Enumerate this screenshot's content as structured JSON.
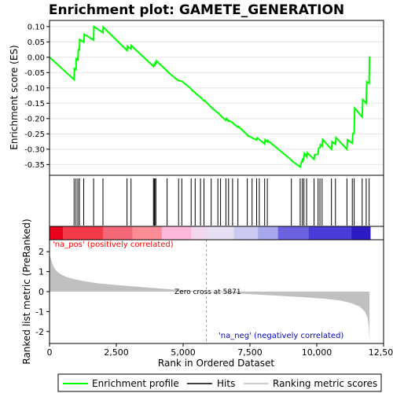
{
  "chart_data": {
    "type": "line",
    "title": "Enrichment plot: GAMETE_GENERATION",
    "colors": {
      "profile": "#00ff00",
      "hits": "#000000",
      "metric_fill": "#c0c0c0",
      "zero_cross_line": "#a0a0a0",
      "pos_label": "#ff0000",
      "neg_label": "#0000cc"
    },
    "top_panel": {
      "ylabel": "Enrichment score (ES)",
      "ylim": [
        -0.385,
        0.12
      ],
      "yticks": [
        0.1,
        0.05,
        0.0,
        -0.05,
        -0.1,
        -0.15,
        -0.2,
        -0.25,
        -0.3,
        -0.35
      ],
      "ytick_labels": [
        "0.10",
        "0.05",
        "0.00",
        "-0.05",
        "-0.10",
        "-0.15",
        "-0.20",
        "-0.25",
        "-0.30",
        "-0.35"
      ],
      "series": [
        {
          "name": "Enrichment profile",
          "x": [
            0,
            920,
            930,
            990,
            1000,
            1060,
            1080,
            1120,
            1130,
            1280,
            1300,
            1650,
            1660,
            2000,
            2010,
            2900,
            2910,
            3050,
            3060,
            3890,
            3900,
            3940,
            3950,
            3980,
            4000,
            4400,
            4450,
            4830,
            4850,
            4950,
            5000,
            5300,
            5330,
            5450,
            5470,
            5650,
            5680,
            5780,
            5800,
            6050,
            6080,
            6300,
            6320,
            6400,
            6420,
            6600,
            6620,
            6700,
            6720,
            6850,
            6870,
            7050,
            7070,
            7400,
            7420,
            7580,
            7600,
            7750,
            7770,
            7850,
            7870,
            8050,
            8070,
            8150,
            8170,
            9050,
            9070,
            9380,
            9400,
            9460,
            9480,
            9520,
            9540,
            9620,
            9640,
            9900,
            9920,
            10050,
            10070,
            10120,
            10140,
            10200,
            10220,
            10550,
            10570,
            10700,
            10720,
            11130,
            11150,
            11330,
            11350,
            11400,
            11420,
            11700,
            11720,
            11850,
            11870,
            11960,
            11975
          ],
          "y": [
            0.0,
            -0.073,
            -0.037,
            -0.04,
            -0.005,
            -0.009,
            0.025,
            0.024,
            0.058,
            0.049,
            0.075,
            0.056,
            0.1,
            0.08,
            0.098,
            0.022,
            0.036,
            0.027,
            0.038,
            -0.03,
            -0.024,
            -0.027,
            -0.018,
            -0.02,
            -0.012,
            -0.045,
            -0.05,
            -0.077,
            -0.076,
            -0.078,
            -0.082,
            -0.103,
            -0.108,
            -0.115,
            -0.118,
            -0.131,
            -0.133,
            -0.142,
            -0.141,
            -0.163,
            -0.166,
            -0.182,
            -0.182,
            -0.19,
            -0.192,
            -0.206,
            -0.2,
            -0.209,
            -0.207,
            -0.213,
            -0.216,
            -0.228,
            -0.226,
            -0.253,
            -0.256,
            -0.262,
            -0.264,
            -0.27,
            -0.263,
            -0.268,
            -0.27,
            -0.283,
            -0.269,
            -0.276,
            -0.272,
            -0.335,
            -0.338,
            -0.358,
            -0.35,
            -0.335,
            -0.339,
            -0.325,
            -0.313,
            -0.324,
            -0.312,
            -0.333,
            -0.318,
            -0.316,
            -0.296,
            -0.295,
            -0.285,
            -0.29,
            -0.268,
            -0.3,
            -0.275,
            -0.284,
            -0.262,
            -0.3,
            -0.269,
            -0.28,
            -0.249,
            -0.247,
            -0.166,
            -0.195,
            -0.138,
            -0.15,
            -0.08,
            -0.085,
            0.003
          ]
        }
      ]
    },
    "hits_panel": {
      "hit_ranks": [
        920,
        990,
        1060,
        1120,
        1280,
        1650,
        2000,
        2900,
        3050,
        3890,
        3920,
        3940,
        3980,
        4400,
        4830,
        4950,
        5300,
        5450,
        5650,
        5780,
        6050,
        6300,
        6400,
        6600,
        6700,
        6850,
        7050,
        7400,
        7580,
        7750,
        7850,
        8050,
        8150,
        9050,
        9380,
        9460,
        9520,
        9620,
        9900,
        10050,
        10120,
        10200,
        10550,
        10700,
        11130,
        11330,
        11400,
        11700,
        11850,
        11960
      ]
    },
    "color_bar": {
      "stops": [
        {
          "rank": 0,
          "color": "#e8001c"
        },
        {
          "rank": 500,
          "color": "#f23a4a"
        },
        {
          "rank": 2000,
          "color": "#f26878"
        },
        {
          "rank": 3100,
          "color": "#fa8c96"
        },
        {
          "rank": 4200,
          "color": "#fcb8d8"
        },
        {
          "rank": 5300,
          "color": "#f4d6ef"
        },
        {
          "rank": 5871,
          "color": "#e6e0f4"
        },
        {
          "rank": 6900,
          "color": "#cccaf0"
        },
        {
          "rank": 7800,
          "color": "#a8a6ec"
        },
        {
          "rank": 8550,
          "color": "#6c62e0"
        },
        {
          "rank": 9700,
          "color": "#4a3cd8"
        },
        {
          "rank": 11300,
          "color": "#2c1ac4"
        },
        {
          "rank": 12000,
          "color": "#1a00b8"
        }
      ]
    },
    "bottom_panel": {
      "ylabel": "Ranked list metric (PreRanked)",
      "xlabel": "Rank in Ordered Dataset",
      "ylim": [
        -2.6,
        2.6
      ],
      "yticks": [
        2,
        1,
        0,
        -1,
        -2
      ],
      "ytick_labels": [
        "2",
        "1",
        "0",
        "-1",
        "-2"
      ],
      "xlim": [
        0,
        12500
      ],
      "xticks": [
        0,
        2500,
        5000,
        7500,
        10000,
        12500
      ],
      "xtick_labels": [
        "0",
        "2,500",
        "5,000",
        "7,500",
        "10,000",
        "12,500"
      ],
      "n_genes": 11975,
      "zero_cross": 5871,
      "zero_cross_label": "Zero cross at 5871",
      "pos_label": "'na_pos' (positively correlated)",
      "neg_label": "'na_neg' (negatively correlated)",
      "metric_curve": {
        "x": [
          0,
          30,
          80,
          150,
          250,
          400,
          600,
          900,
          1300,
          1800,
          2500,
          3500,
          4500,
          5200,
          5871,
          6500,
          7500,
          8500,
          9500,
          10300,
          10900,
          11300,
          11600,
          11800,
          11900,
          11950,
          11975
        ],
        "y": [
          1.95,
          1.75,
          1.5,
          1.25,
          1.05,
          0.88,
          0.75,
          0.63,
          0.52,
          0.42,
          0.33,
          0.22,
          0.12,
          0.05,
          0.0,
          -0.05,
          -0.13,
          -0.2,
          -0.28,
          -0.36,
          -0.45,
          -0.58,
          -0.75,
          -1.0,
          -1.3,
          -1.8,
          -2.55
        ]
      }
    },
    "legend": {
      "items": [
        {
          "label": "Enrichment profile",
          "color": "#00ff00"
        },
        {
          "label": "Hits",
          "color": "#000000"
        },
        {
          "label": "Ranking metric scores",
          "color": "#c0c0c0"
        }
      ]
    }
  }
}
